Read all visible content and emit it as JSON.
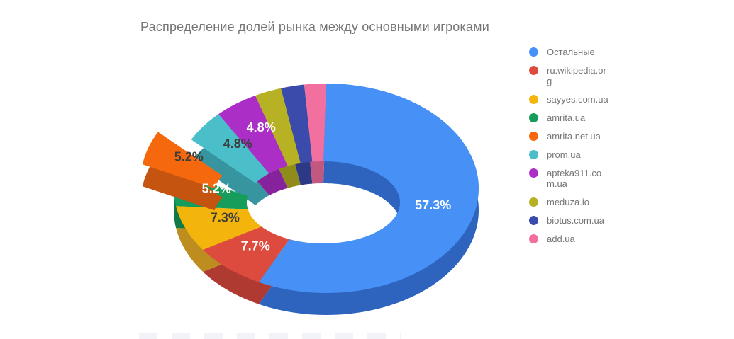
{
  "title": "Распределение долей рынка между основными игроками",
  "chart_data": {
    "type": "pie",
    "style": "3d-donut",
    "title": "Распределение долей рынка между основными игроками",
    "start_angle_deg": 0,
    "direction": "clockwise",
    "legend_position": "right",
    "slices": [
      {
        "name": "Остальные",
        "value": 57.3,
        "label": "57.3%",
        "label_color": "#ffffff",
        "color": "#4690F6",
        "side_color": "#2E64BE",
        "exploded": false
      },
      {
        "name": "ru.wikipedia.org",
        "value": 7.7,
        "label": "7.7%",
        "label_color": "#ffffff",
        "color": "#DD4B3E",
        "side_color": "#AE3A31",
        "exploded": false
      },
      {
        "name": "sayyes.com.ua",
        "value": 7.3,
        "label": "7.3%",
        "label_color": "#3d3d3d",
        "color": "#F3B50B",
        "side_color": "#BE8D1F",
        "exploded": false
      },
      {
        "name": "amrita.ua",
        "value": 5.2,
        "label": "5.2%",
        "label_color": "#ffffff",
        "color": "#179D5B",
        "side_color": "#0F7A45",
        "exploded": false
      },
      {
        "name": "amrita.net.ua",
        "value": 5.2,
        "label": "5.2%",
        "label_color": "#3d3d3d",
        "color": "#F6680D",
        "side_color": "#C55410",
        "exploded": true
      },
      {
        "name": "prom.ua",
        "value": 4.8,
        "label": "4.8%",
        "label_color": "#3d3d3d",
        "color": "#4BBFC9",
        "side_color": "#37959F",
        "exploded": false
      },
      {
        "name": "apteka911.com.ua",
        "value": 4.8,
        "label": "4.8%",
        "label_color": "#ffffff",
        "color": "#AB2FC6",
        "side_color": "#86239C",
        "exploded": false
      },
      {
        "name": "meduza.io",
        "value": 2.9,
        "label": null,
        "label_color": null,
        "color": "#B6B224",
        "side_color": "#8F8C1C",
        "exploded": false,
        "value_estimated": true
      },
      {
        "name": "biotus.com.ua",
        "value": 2.5,
        "label": null,
        "label_color": null,
        "color": "#3A4BAB",
        "side_color": "#2C3A85",
        "exploded": false,
        "value_estimated": true
      },
      {
        "name": "add.ua",
        "value": 2.3,
        "label": null,
        "label_color": null,
        "color": "#F2709F",
        "side_color": "#C25880",
        "exploded": false,
        "value_estimated": true
      }
    ]
  },
  "legend": {
    "items": [
      {
        "label": "Остальные",
        "lines": [
          "Остальные"
        ],
        "color": "#4690F6"
      },
      {
        "label": "ru.wikipedia.org",
        "lines": [
          "ru.wikipedia.or",
          "g"
        ],
        "color": "#DD4B3E"
      },
      {
        "label": "sayyes.com.ua",
        "lines": [
          "sayyes.com.ua"
        ],
        "color": "#F3B50B"
      },
      {
        "label": "amrita.ua",
        "lines": [
          "amrita.ua"
        ],
        "color": "#179D5B"
      },
      {
        "label": "amrita.net.ua",
        "lines": [
          "amrita.net.ua"
        ],
        "color": "#F6680D"
      },
      {
        "label": "prom.ua",
        "lines": [
          "prom.ua"
        ],
        "color": "#4BBFC9"
      },
      {
        "label": "apteka911.com.ua",
        "lines": [
          "apteka911.co",
          "m.ua"
        ],
        "color": "#AB2FC6"
      },
      {
        "label": "meduza.io",
        "lines": [
          "meduza.io"
        ],
        "color": "#B6B224"
      },
      {
        "label": "biotus.com.ua",
        "lines": [
          "biotus.com.ua"
        ],
        "color": "#3A4BAB"
      },
      {
        "label": "add.ua",
        "lines": [
          "add.ua"
        ],
        "color": "#F2709F"
      }
    ]
  }
}
